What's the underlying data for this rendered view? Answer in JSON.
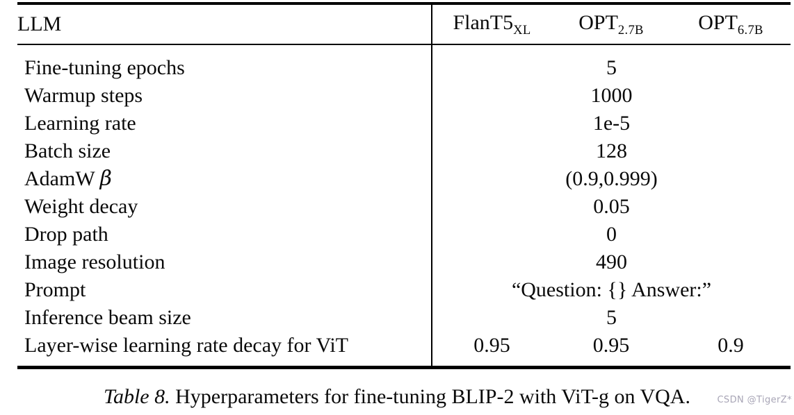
{
  "table": {
    "header": {
      "label": "LLM",
      "columns": [
        {
          "base": "FlanT5",
          "sub": "XL"
        },
        {
          "base": "OPT",
          "sub": "2.7B"
        },
        {
          "base": "OPT",
          "sub": "6.7B"
        }
      ]
    },
    "rows": [
      {
        "label": "Fine-tuning epochs",
        "span": true,
        "values": [
          "5"
        ]
      },
      {
        "label": "Warmup steps",
        "span": true,
        "values": [
          "1000"
        ]
      },
      {
        "label": "Learning rate",
        "span": true,
        "values": [
          "1e-5"
        ]
      },
      {
        "label": "Batch size",
        "span": true,
        "values": [
          "128"
        ]
      },
      {
        "label": "AdamW β",
        "span": true,
        "values": [
          "(0.9,0.999)"
        ]
      },
      {
        "label": "Weight decay",
        "span": true,
        "values": [
          "0.05"
        ]
      },
      {
        "label": "Drop path",
        "span": true,
        "values": [
          "0"
        ]
      },
      {
        "label": "Image resolution",
        "span": true,
        "values": [
          "490"
        ]
      },
      {
        "label": "Prompt",
        "span": true,
        "values": [
          "“Question: {} Answer:”"
        ]
      },
      {
        "label": "Inference beam size",
        "span": true,
        "values": [
          "5"
        ]
      },
      {
        "label": "Layer-wise learning rate decay for ViT",
        "span": false,
        "values": [
          "0.95",
          "0.95",
          "0.9"
        ]
      }
    ]
  },
  "caption": {
    "prefix": "Table 8.",
    "text": "Hyperparameters for fine-tuning BLIP-2 with ViT-g on VQA."
  },
  "watermark": "CSDN @TigerZ*",
  "colors": {
    "text": "#0a0a0a",
    "rule": "#000000",
    "watermark": "#a8a5b6"
  }
}
